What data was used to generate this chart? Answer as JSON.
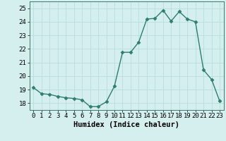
{
  "x": [
    0,
    1,
    2,
    3,
    4,
    5,
    6,
    7,
    8,
    9,
    10,
    11,
    12,
    13,
    14,
    15,
    16,
    17,
    18,
    19,
    20,
    21,
    22,
    23
  ],
  "y": [
    19.15,
    18.7,
    18.65,
    18.5,
    18.4,
    18.35,
    18.25,
    17.75,
    17.75,
    18.1,
    19.25,
    21.75,
    21.75,
    22.5,
    24.2,
    24.25,
    24.85,
    24.05,
    24.75,
    24.2,
    24.0,
    20.45,
    19.75,
    18.15
  ],
  "line_color": "#2e7d6e",
  "marker": "D",
  "markersize": 2.5,
  "linewidth": 1.0,
  "bg_color": "#d4efee",
  "grid_color": "#b8dedd",
  "xlabel": "Humidex (Indice chaleur)",
  "xlim": [
    -0.5,
    23.5
  ],
  "ylim": [
    17.5,
    25.5
  ],
  "yticks": [
    18,
    19,
    20,
    21,
    22,
    23,
    24,
    25
  ],
  "xticks": [
    0,
    1,
    2,
    3,
    4,
    5,
    6,
    7,
    8,
    9,
    10,
    11,
    12,
    13,
    14,
    15,
    16,
    17,
    18,
    19,
    20,
    21,
    22,
    23
  ],
  "xlabel_fontsize": 7.5,
  "tick_fontsize": 6.5,
  "fig_bg_color": "#d4efee"
}
